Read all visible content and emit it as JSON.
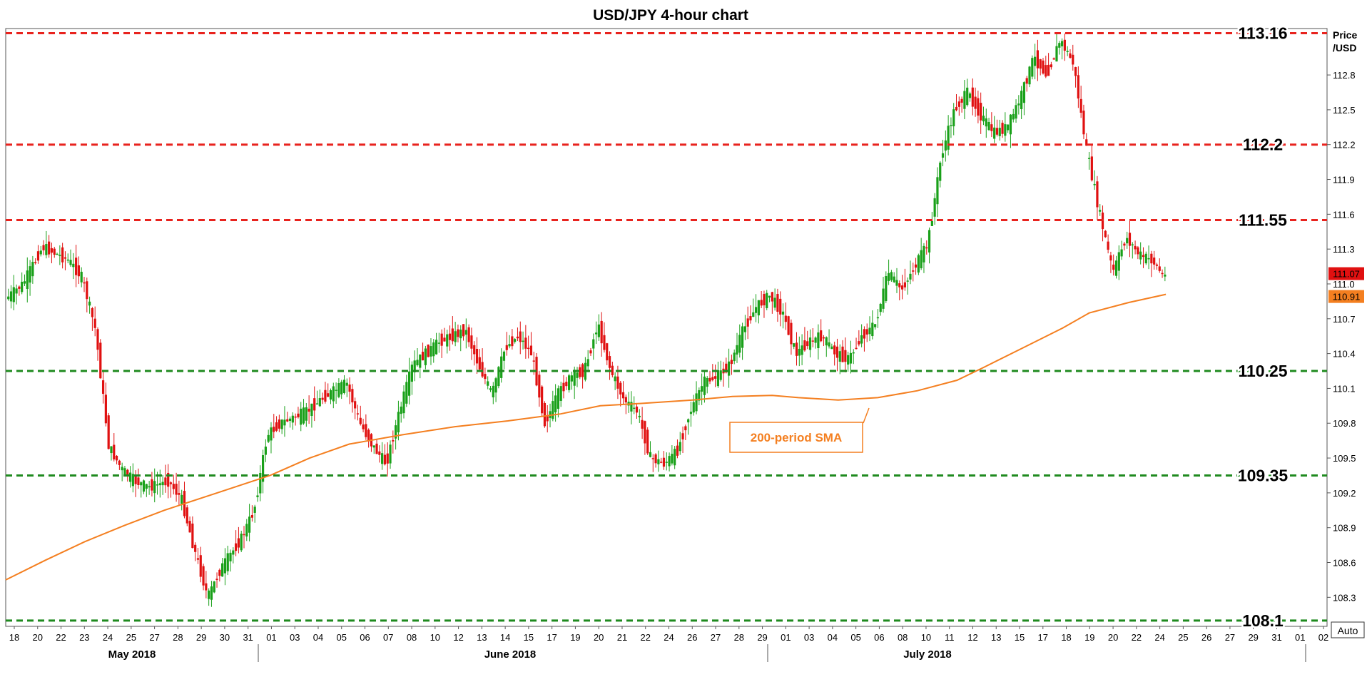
{
  "chart_data": {
    "type": "candlestick",
    "title": "USD/JPY 4-hour chart",
    "ylabel_line1": "Price",
    "ylabel_line2": "/USD",
    "ylim": [
      108.05,
      113.2
    ],
    "yticks": [
      108.3,
      108.6,
      108.9,
      109.2,
      109.5,
      109.8,
      110.1,
      110.4,
      110.7,
      111.0,
      111.3,
      111.6,
      111.9,
      112.2,
      112.5,
      112.8
    ],
    "auto_label": "Auto",
    "x_day_labels": [
      "18",
      "20",
      "22",
      "23",
      "24",
      "25",
      "27",
      "28",
      "29",
      "30",
      "31",
      "01",
      "03",
      "04",
      "05",
      "06",
      "07",
      "08",
      "10",
      "12",
      "13",
      "14",
      "15",
      "17",
      "19",
      "20",
      "21",
      "22",
      "24",
      "26",
      "27",
      "28",
      "29",
      "01",
      "03",
      "04",
      "05",
      "06",
      "08",
      "10",
      "11",
      "12",
      "13",
      "15",
      "17",
      "18",
      "19",
      "20",
      "22",
      "24",
      "25",
      "26",
      "27",
      "29",
      "31",
      "01",
      "02"
    ],
    "x_month_labels": [
      "May 2018",
      "June 2018",
      "July 2018"
    ],
    "levels": [
      {
        "value": 113.16,
        "label": "113.16",
        "color": "#e8231e",
        "type": "resistance"
      },
      {
        "value": 112.2,
        "label": "112.2",
        "color": "#e8231e",
        "type": "resistance"
      },
      {
        "value": 111.55,
        "label": "111.55",
        "color": "#e8231e",
        "type": "resistance"
      },
      {
        "value": 110.25,
        "label": "110.25",
        "color": "#1f8a1f",
        "type": "support"
      },
      {
        "value": 109.35,
        "label": "109.35",
        "color": "#1f8a1f",
        "type": "support"
      },
      {
        "value": 108.1,
        "label": "108.1",
        "color": "#1f8a1f",
        "type": "support"
      }
    ],
    "price_markers": [
      {
        "value": 111.07,
        "label": "111.07",
        "color": "#e01010"
      },
      {
        "value": 110.91,
        "label": "110.91",
        "color": "#f47f20"
      }
    ],
    "sma": {
      "name": "200-period SMA",
      "color": "#f47f20",
      "points": [
        [
          0,
          108.45
        ],
        [
          0.03,
          108.62
        ],
        [
          0.06,
          108.78
        ],
        [
          0.09,
          108.92
        ],
        [
          0.12,
          109.05
        ],
        [
          0.16,
          109.2
        ],
        [
          0.2,
          109.35
        ],
        [
          0.23,
          109.5
        ],
        [
          0.26,
          109.62
        ],
        [
          0.3,
          109.7
        ],
        [
          0.34,
          109.77
        ],
        [
          0.38,
          109.82
        ],
        [
          0.42,
          109.88
        ],
        [
          0.45,
          109.95
        ],
        [
          0.48,
          109.97
        ],
        [
          0.52,
          110.0
        ],
        [
          0.55,
          110.03
        ],
        [
          0.58,
          110.04
        ],
        [
          0.6,
          110.02
        ],
        [
          0.63,
          110.0
        ],
        [
          0.66,
          110.02
        ],
        [
          0.69,
          110.08
        ],
        [
          0.72,
          110.17
        ],
        [
          0.74,
          110.28
        ],
        [
          0.77,
          110.45
        ],
        [
          0.8,
          110.62
        ],
        [
          0.82,
          110.75
        ],
        [
          0.85,
          110.84
        ],
        [
          0.878,
          110.91
        ]
      ]
    },
    "price_path": [
      [
        0,
        110.85
      ],
      [
        0.015,
        111.0
      ],
      [
        0.03,
        111.32
      ],
      [
        0.05,
        111.2
      ],
      [
        0.06,
        111.05
      ],
      [
        0.07,
        110.6
      ],
      [
        0.08,
        109.6
      ],
      [
        0.09,
        109.4
      ],
      [
        0.1,
        109.3
      ],
      [
        0.11,
        109.25
      ],
      [
        0.125,
        109.3
      ],
      [
        0.135,
        109.15
      ],
      [
        0.145,
        108.7
      ],
      [
        0.155,
        108.3
      ],
      [
        0.165,
        108.55
      ],
      [
        0.18,
        108.8
      ],
      [
        0.19,
        109.05
      ],
      [
        0.2,
        109.7
      ],
      [
        0.21,
        109.8
      ],
      [
        0.22,
        109.85
      ],
      [
        0.23,
        109.9
      ],
      [
        0.24,
        110.0
      ],
      [
        0.26,
        110.15
      ],
      [
        0.27,
        109.8
      ],
      [
        0.28,
        109.6
      ],
      [
        0.29,
        109.45
      ],
      [
        0.3,
        109.9
      ],
      [
        0.31,
        110.3
      ],
      [
        0.33,
        110.5
      ],
      [
        0.35,
        110.6
      ],
      [
        0.36,
        110.3
      ],
      [
        0.37,
        110.05
      ],
      [
        0.38,
        110.45
      ],
      [
        0.39,
        110.55
      ],
      [
        0.4,
        110.4
      ],
      [
        0.41,
        109.8
      ],
      [
        0.42,
        110.05
      ],
      [
        0.43,
        110.2
      ],
      [
        0.44,
        110.25
      ],
      [
        0.45,
        110.65
      ],
      [
        0.46,
        110.25
      ],
      [
        0.47,
        110.0
      ],
      [
        0.48,
        109.9
      ],
      [
        0.49,
        109.5
      ],
      [
        0.5,
        109.45
      ],
      [
        0.51,
        109.55
      ],
      [
        0.52,
        109.9
      ],
      [
        0.53,
        110.15
      ],
      [
        0.54,
        110.2
      ],
      [
        0.55,
        110.3
      ],
      [
        0.56,
        110.6
      ],
      [
        0.57,
        110.8
      ],
      [
        0.58,
        110.9
      ],
      [
        0.59,
        110.75
      ],
      [
        0.6,
        110.4
      ],
      [
        0.61,
        110.5
      ],
      [
        0.62,
        110.55
      ],
      [
        0.63,
        110.4
      ],
      [
        0.64,
        110.35
      ],
      [
        0.65,
        110.55
      ],
      [
        0.66,
        110.65
      ],
      [
        0.67,
        111.1
      ],
      [
        0.68,
        110.95
      ],
      [
        0.69,
        111.15
      ],
      [
        0.7,
        111.35
      ],
      [
        0.71,
        112.1
      ],
      [
        0.72,
        112.5
      ],
      [
        0.73,
        112.65
      ],
      [
        0.74,
        112.45
      ],
      [
        0.75,
        112.3
      ],
      [
        0.76,
        112.35
      ],
      [
        0.77,
        112.6
      ],
      [
        0.78,
        112.95
      ],
      [
        0.79,
        112.8
      ],
      [
        0.8,
        113.1
      ],
      [
        0.81,
        112.9
      ],
      [
        0.82,
        112.15
      ],
      [
        0.83,
        111.6
      ],
      [
        0.84,
        111.1
      ],
      [
        0.85,
        111.4
      ],
      [
        0.86,
        111.25
      ],
      [
        0.87,
        111.2
      ],
      [
        0.878,
        111.07
      ]
    ]
  }
}
